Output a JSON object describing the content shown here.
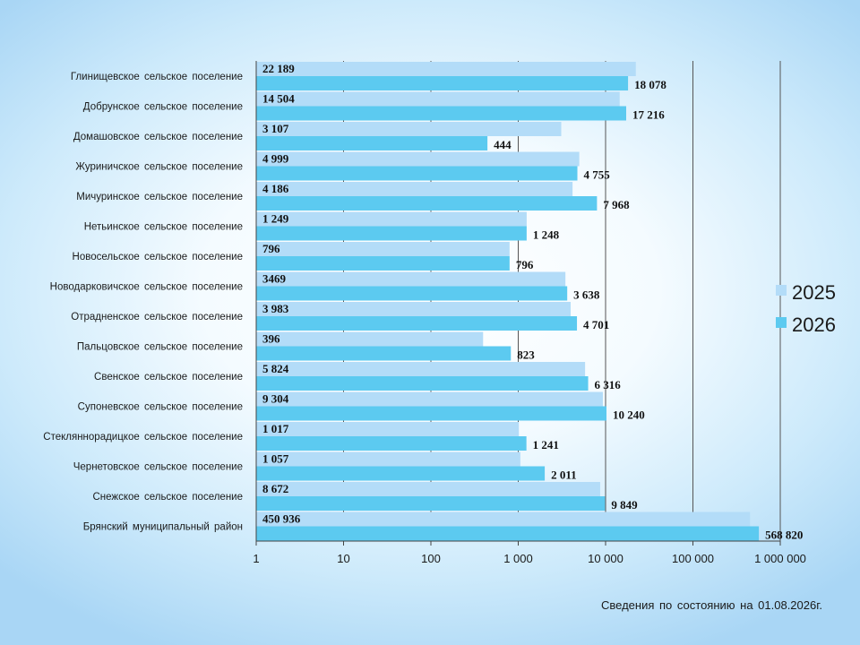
{
  "chart_data": {
    "type": "bar",
    "orientation": "horizontal",
    "x_scale": "log",
    "xlim": [
      1,
      1000000
    ],
    "grid": true,
    "legend_position": "right",
    "x_tick_values": [
      1,
      10,
      100,
      1000,
      10000,
      100000,
      1000000
    ],
    "x_tick_labels": [
      "1",
      "10",
      "100",
      "1 000",
      "10 000",
      "100 000",
      "1 000 000"
    ],
    "categories": [
      "Глинищевское  сельское  поселение",
      "Добрунское  сельское  поселение",
      "Домашовское  сельское  поселение",
      "Журиничское  сельское  поселение",
      "Мичуринское  сельское  поселение",
      "Нетьинское  сельское  поселение",
      "Новосельское  сельское  поселение",
      "Новодарковичское  сельское  поселение",
      "Отрадненское  сельское  поселение",
      "Пальцовское  сельское  поселение",
      "Свенское  сельское  поселение",
      "Супоневское  сельское  поселение",
      "Стекляннорадицкое  сельское  поселение",
      "Чернетовское  сельское  поселение",
      "Снежское  сельское  поселение",
      "Брянский  муниципальный  район"
    ],
    "series": [
      {
        "name": "2025",
        "color": "#b3dcf8",
        "values": [
          22189,
          14504,
          3107,
          4999,
          4186,
          1249,
          796,
          3469,
          3983,
          396,
          5824,
          9304,
          1017,
          1057,
          8672,
          450936
        ],
        "labels": [
          "22 189",
          "14 504",
          "3 107",
          "4 999",
          "4 186",
          "1 249",
          "796",
          "3469",
          "3 983",
          "396",
          "5 824",
          "9 304",
          "1 017",
          "1 057",
          "8 672",
          "450 936"
        ]
      },
      {
        "name": "2026",
        "color": "#5ccaf0",
        "values": [
          18078,
          17216,
          444,
          4755,
          7968,
          1248,
          796,
          3638,
          4701,
          823,
          6316,
          10240,
          1241,
          2011,
          9849,
          568820
        ],
        "labels": [
          "18 078",
          "17 216",
          "444",
          "4 755",
          "7 968",
          "1 248",
          "796",
          "3 638",
          "4 701",
          "823",
          "6 316",
          "10 240",
          "1 241",
          "2 011",
          "9 849",
          "568 820"
        ]
      }
    ]
  },
  "footnote": "Сведения  по  состоянию  на  01.08.2026г."
}
